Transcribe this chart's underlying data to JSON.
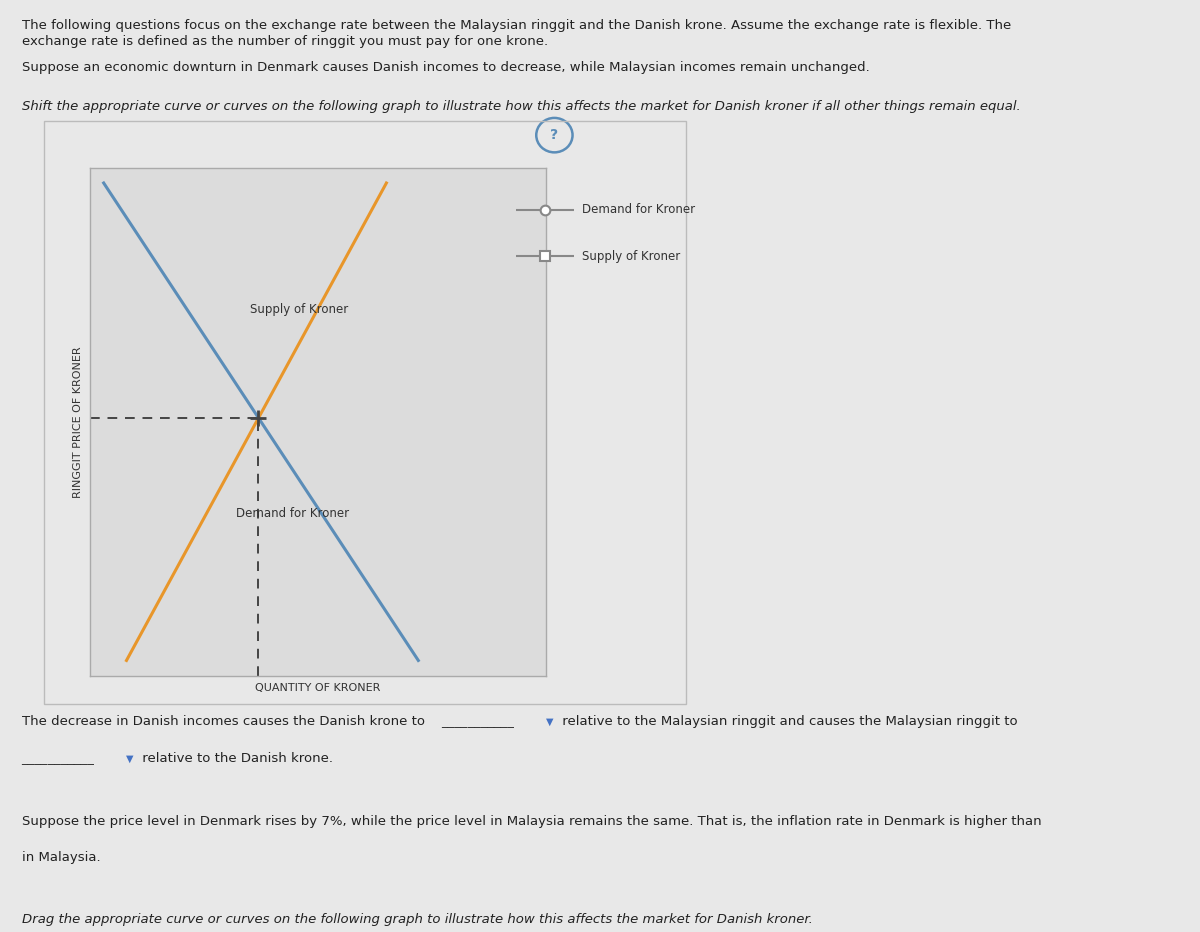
{
  "title_text1": "The following questions focus on the exchange rate between the Malaysian ringgit and the Danish krone. Assume the exchange rate is flexible. The",
  "title_text2": "exchange rate is defined as the number of ringgit you must pay for one krone.",
  "para1": "Suppose an economic downturn in Denmark causes Danish incomes to decrease, while Malaysian incomes remain unchanged.",
  "para2_italic": "Shift the appropriate curve or curves on the following graph to illustrate how this affects the market for Danish kroner if all other things remain equal.",
  "ylabel": "RINGGIT PRICE OF KRONER",
  "xlabel": "QUANTITY OF KRONER",
  "supply_color": "#E8962A",
  "demand_color": "#5B8DB8",
  "dashed_color": "#444444",
  "legend_demand_label": "Demand for Kroner",
  "legend_supply_label": "Supply of Kroner",
  "supply_label_on_graph": "Supply of Kroner",
  "demand_label_on_graph": "Demand for Kroner",
  "graph_bg": "#DCDCDC",
  "outer_bg": "#E8E8E8",
  "box_border": "#AAAAAA",
  "question_circle_color": "#5B8DB8",
  "bottom_text1": "The decrease in Danish incomes causes the Danish krone to",
  "bottom_text2": "relative to the Malaysian ringgit and causes the Malaysian ringgit to",
  "bottom_text3": "relative to the Danish krone.",
  "bottom_text4": "Suppose the price level in Denmark rises by 7%, while the price level in Malaysia remains the same. That is, the inflation rate in Denmark is higher than",
  "bottom_text5": "in Malaysia.",
  "bottom_italic": "Drag the appropriate curve or curves on the following graph to illustrate how this affects the market for Danish kroner.",
  "dropdown_color": "#4472C4",
  "legend_line_color": "#888888",
  "text_color": "#222222"
}
